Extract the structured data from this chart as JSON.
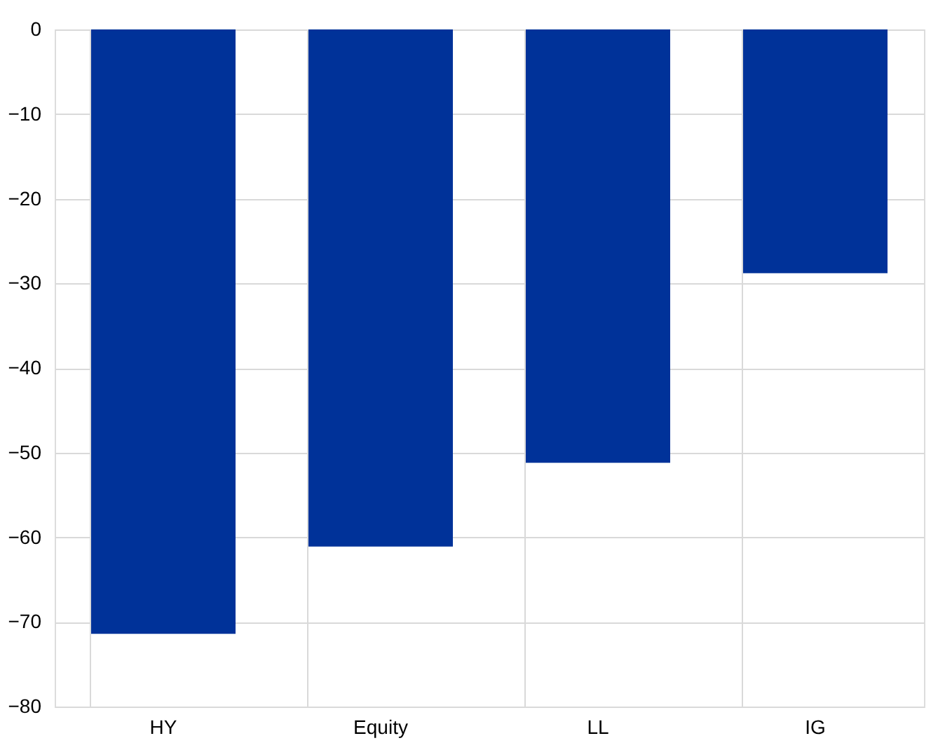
{
  "chart_data": {
    "type": "bar",
    "categories": [
      "HY",
      "Equity",
      "LL",
      "IG"
    ],
    "values": [
      -71.4,
      -61.1,
      -51.2,
      -28.8
    ],
    "color": "#003299",
    "ylim": [
      -80,
      0
    ],
    "yticks": [
      -80,
      -70,
      -60,
      -50,
      -40,
      -30,
      -20,
      -10,
      0
    ],
    "grid": true
  }
}
